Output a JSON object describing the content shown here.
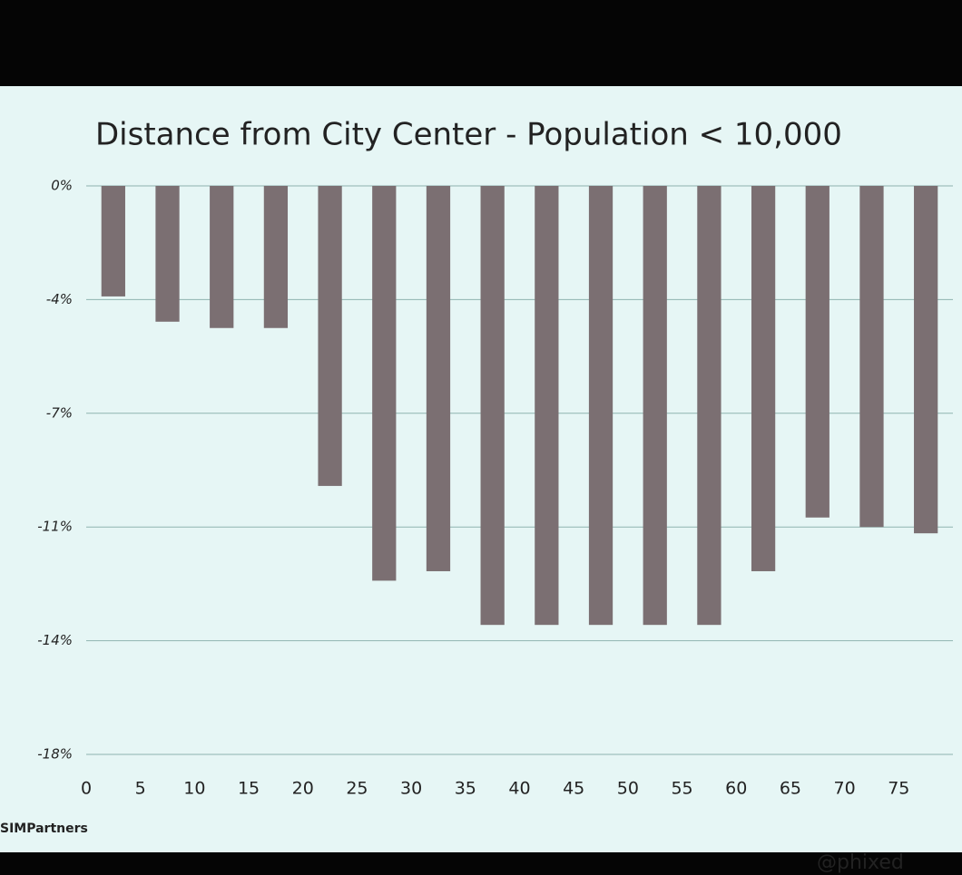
{
  "chart_data": {
    "type": "bar",
    "title": "Distance from City Center - Population < 10,000",
    "x": [
      0,
      5,
      10,
      15,
      20,
      25,
      30,
      35,
      40,
      45,
      50,
      55,
      60,
      65,
      70,
      75
    ],
    "values": [
      -3.5,
      -4.3,
      -4.5,
      -4.5,
      -9.5,
      -12.5,
      -12.2,
      -13.9,
      -13.9,
      -13.9,
      -13.9,
      -13.9,
      -12.2,
      -10.5,
      -10.8,
      -11
    ],
    "color": "#7b6f72",
    "xlim": [
      0,
      80
    ],
    "xticks": [
      0,
      5,
      10,
      15,
      20,
      25,
      30,
      35,
      40,
      45,
      50,
      55,
      60,
      65,
      70,
      75
    ],
    "ylim": [
      -18,
      0
    ],
    "yticks": [
      {
        "value": 0,
        "label": "0%"
      },
      {
        "value": -3.6,
        "label": "-4%"
      },
      {
        "value": -7.2,
        "label": "-7%"
      },
      {
        "value": -10.8,
        "label": "-11%"
      },
      {
        "value": -14.4,
        "label": "-14%"
      },
      {
        "value": -18,
        "label": "-18%"
      }
    ],
    "grid": true,
    "logo": "SIMPartners",
    "credit": "@phixed"
  }
}
